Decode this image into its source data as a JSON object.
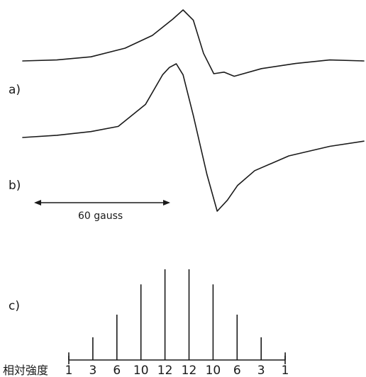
{
  "panels": {
    "a": "a)",
    "b": "b)",
    "c": "c)"
  },
  "scale_bar": {
    "label": "60 gauss",
    "span_gauss": 60
  },
  "chart_data": [
    {
      "type": "line",
      "panel": "a)",
      "title": "",
      "xlabel": "",
      "ylabel": "",
      "series": [
        {
          "x": [
            0,
            10,
            20,
            30,
            38,
            44,
            47,
            50,
            53,
            56,
            59,
            62,
            70,
            80,
            90,
            100
          ],
          "values": [
            0,
            0.02,
            0.08,
            0.25,
            0.5,
            0.82,
            1.0,
            0.8,
            0.15,
            -0.25,
            -0.22,
            -0.3,
            -0.15,
            -0.05,
            0.02,
            0.0
          ]
        }
      ]
    },
    {
      "type": "line",
      "panel": "b)",
      "title": "",
      "xlabel": "",
      "ylabel": "",
      "series": [
        {
          "x": [
            0,
            10,
            20,
            28,
            36,
            41,
            43,
            45,
            47,
            50,
            54,
            57,
            60,
            63,
            68,
            78,
            90,
            100
          ],
          "values": [
            0,
            0.03,
            0.08,
            0.15,
            0.45,
            0.85,
            0.95,
            1.0,
            0.85,
            0.3,
            -0.5,
            -1.0,
            -0.85,
            -0.65,
            -0.45,
            -0.25,
            -0.12,
            -0.05
          ]
        }
      ]
    },
    {
      "type": "bar",
      "panel": "c)",
      "title": "",
      "xlabel": "",
      "ylabel": "相対強度",
      "categories": [
        "1",
        "3",
        "6",
        "10",
        "12",
        "12",
        "10",
        "6",
        "3",
        "1"
      ],
      "values": [
        1,
        3,
        6,
        10,
        12,
        12,
        10,
        6,
        3,
        1
      ],
      "ylim": [
        0,
        12
      ]
    }
  ]
}
